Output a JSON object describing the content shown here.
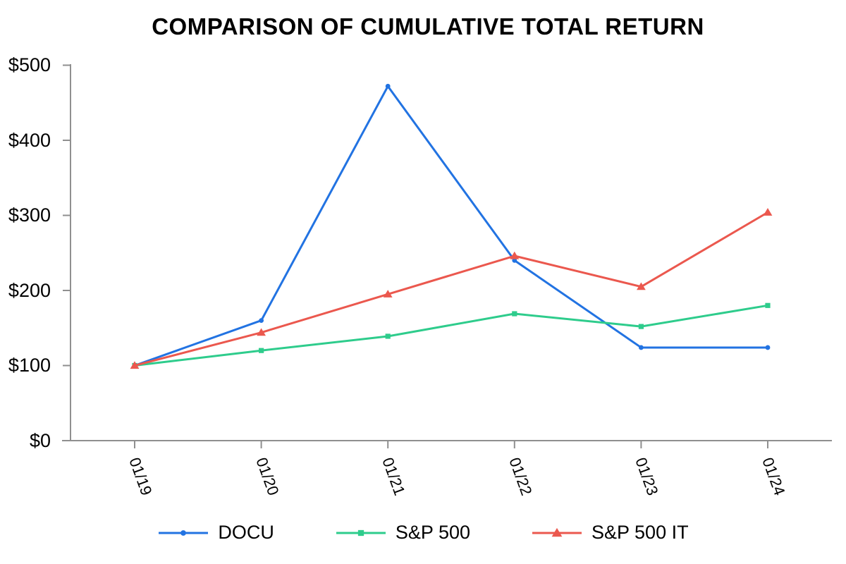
{
  "chart_data": {
    "type": "line",
    "title": "COMPARISON OF CUMULATIVE TOTAL RETURN",
    "categories": [
      "01/19",
      "01/20",
      "01/21",
      "01/22",
      "01/23",
      "01/24"
    ],
    "series": [
      {
        "name": "DOCU",
        "color": "#2273e2",
        "marker": "circle",
        "values": [
          100,
          160,
          472,
          240,
          124,
          124
        ]
      },
      {
        "name": "S&P 500",
        "color": "#2ecc8c",
        "marker": "square",
        "values": [
          100,
          120,
          139,
          169,
          152,
          180
        ]
      },
      {
        "name": "S&P 500 IT",
        "color": "#eb584e",
        "marker": "triangle",
        "values": [
          100,
          144,
          195,
          246,
          205,
          304
        ]
      }
    ],
    "y_ticks": [
      "$0",
      "$100",
      "$200",
      "$300",
      "$400",
      "$500"
    ],
    "y_tick_values": [
      0,
      100,
      200,
      300,
      400,
      500
    ],
    "ylim": [
      0,
      500
    ],
    "xlabel": "",
    "ylabel": "",
    "grid": false,
    "legend_position": "bottom",
    "axis_color": "#8f8f8f",
    "text_color": "#000000"
  }
}
